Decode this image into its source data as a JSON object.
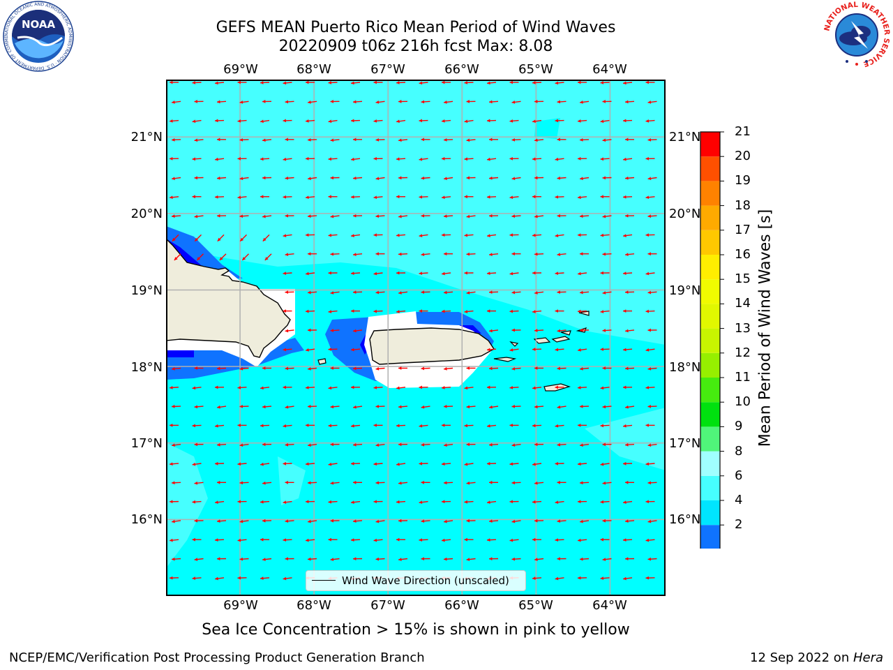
{
  "title": {
    "line1": "GEFS MEAN Puerto Rico Mean Period of Wind Waves",
    "line2": "20220909 t06z 216h fcst   Max: 8.08"
  },
  "map": {
    "lon_ticks": [
      "69°W",
      "68°W",
      "67°W",
      "66°W",
      "65°W",
      "64°W"
    ],
    "lat_ticks": [
      "21°N",
      "20°N",
      "19°N",
      "18°N",
      "17°N",
      "16°N"
    ],
    "lon_range": [
      -70.0,
      -63.25
    ],
    "lat_range": [
      15.0,
      21.75
    ],
    "legend_label": "Wind Wave Direction (unscaled)",
    "arrow_color": "#ff0000",
    "land_color": "#efeddc",
    "gridlines": true
  },
  "colorbar": {
    "label": "Mean Period of Wind Waves [s]",
    "ticks": [
      "2",
      "4",
      "6",
      "8",
      "9",
      "10",
      "11",
      "12",
      "13",
      "14",
      "15",
      "16",
      "17",
      "18",
      "19",
      "20",
      "21"
    ],
    "colors": [
      "#0f73ff",
      "#00e5ff",
      "#46ffff",
      "#a0ffff",
      "#50f57a",
      "#00e10f",
      "#46eb0f",
      "#96ef00",
      "#c8f500",
      "#e1f800",
      "#f0fb00",
      "#ffee00",
      "#ffc800",
      "#ffaa00",
      "#ff8200",
      "#ff5000",
      "#ff2800",
      "#ff0000"
    ],
    "under_color": "#0000ff"
  },
  "sea_ice_note": "Sea Ice Concentration > 15% is shown in pink to yellow",
  "footer": {
    "left": "NCEP/EMC/Verification Post Processing Product Generation Branch",
    "right_prefix": "12 Sep 2022 on ",
    "right_machine": "Hera"
  },
  "logos": {
    "noaa": "NOAA",
    "noaa_ring": "NATIONAL OCEANIC AND ATMOSPHERIC ADMINISTRATION · U.S. DEPARTMENT OF COMMERCE",
    "nws_ring": "NATIONAL WEATHER SERVICE"
  }
}
